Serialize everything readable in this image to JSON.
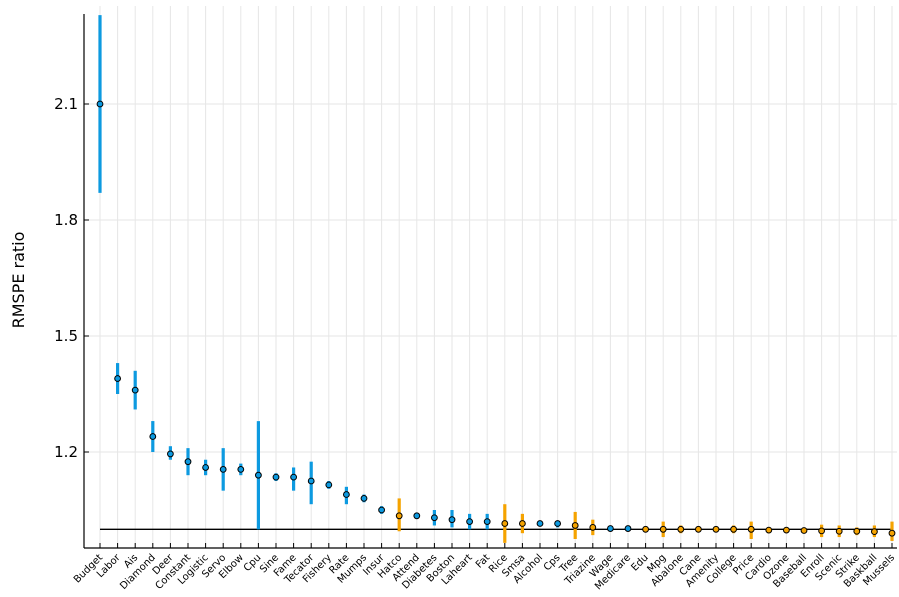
{
  "chart_data": {
    "type": "scatter",
    "title": "",
    "xlabel": "",
    "ylabel": "RMSPE ratio",
    "ylim": [
      0.955,
      2.33
    ],
    "yticks": [
      1.2,
      1.5,
      1.8,
      2.1
    ],
    "reference_line": 1.0,
    "grid": true,
    "colors": {
      "blue": "#0d9ae0",
      "orange": "#f5a300",
      "axis": "#000000",
      "grid": "#e6e6e6"
    },
    "points": [
      {
        "label": "Budget",
        "value": 2.1,
        "low": 1.87,
        "high": 2.33,
        "color": "blue"
      },
      {
        "label": "Labor",
        "value": 1.39,
        "low": 1.35,
        "high": 1.43,
        "color": "blue"
      },
      {
        "label": "Ais",
        "value": 1.36,
        "low": 1.31,
        "high": 1.41,
        "color": "blue"
      },
      {
        "label": "Diamond",
        "value": 1.24,
        "low": 1.2,
        "high": 1.28,
        "color": "blue"
      },
      {
        "label": "Deer",
        "value": 1.195,
        "low": 1.18,
        "high": 1.215,
        "color": "blue"
      },
      {
        "label": "Constant",
        "value": 1.175,
        "low": 1.14,
        "high": 1.21,
        "color": "blue"
      },
      {
        "label": "Logistic",
        "value": 1.16,
        "low": 1.14,
        "high": 1.18,
        "color": "blue"
      },
      {
        "label": "Servo",
        "value": 1.155,
        "low": 1.1,
        "high": 1.21,
        "color": "blue"
      },
      {
        "label": "Elbow",
        "value": 1.155,
        "low": 1.14,
        "high": 1.17,
        "color": "blue"
      },
      {
        "label": "Cpu",
        "value": 1.14,
        "low": 1.0,
        "high": 1.28,
        "color": "blue"
      },
      {
        "label": "Sine",
        "value": 1.135,
        "low": 1.125,
        "high": 1.145,
        "color": "blue"
      },
      {
        "label": "Fame",
        "value": 1.135,
        "low": 1.1,
        "high": 1.16,
        "color": "blue"
      },
      {
        "label": "Tecator",
        "value": 1.125,
        "low": 1.065,
        "high": 1.175,
        "color": "blue"
      },
      {
        "label": "Fishery",
        "value": 1.115,
        "low": 1.105,
        "high": 1.125,
        "color": "blue"
      },
      {
        "label": "Rate",
        "value": 1.09,
        "low": 1.065,
        "high": 1.11,
        "color": "blue"
      },
      {
        "label": "Mumps",
        "value": 1.08,
        "low": 1.07,
        "high": 1.09,
        "color": "blue"
      },
      {
        "label": "Insur",
        "value": 1.05,
        "low": 1.04,
        "high": 1.06,
        "color": "blue"
      },
      {
        "label": "Hatco",
        "value": 1.035,
        "low": 0.995,
        "high": 1.08,
        "color": "orange"
      },
      {
        "label": "Attend",
        "value": 1.035,
        "low": 1.03,
        "high": 1.04,
        "color": "blue"
      },
      {
        "label": "Diabetes",
        "value": 1.03,
        "low": 1.01,
        "high": 1.05,
        "color": "blue"
      },
      {
        "label": "Boston",
        "value": 1.025,
        "low": 1.005,
        "high": 1.05,
        "color": "blue"
      },
      {
        "label": "Laheart",
        "value": 1.02,
        "low": 1.0,
        "high": 1.04,
        "color": "blue"
      },
      {
        "label": "Fat",
        "value": 1.02,
        "low": 1.0,
        "high": 1.04,
        "color": "blue"
      },
      {
        "label": "Rice",
        "value": 1.015,
        "low": 0.965,
        "high": 1.065,
        "color": "orange"
      },
      {
        "label": "Smsa",
        "value": 1.015,
        "low": 0.99,
        "high": 1.04,
        "color": "orange"
      },
      {
        "label": "Alcohol",
        "value": 1.015,
        "low": 1.01,
        "high": 1.02,
        "color": "blue"
      },
      {
        "label": "Cps",
        "value": 1.015,
        "low": 1.005,
        "high": 1.02,
        "color": "blue"
      },
      {
        "label": "Tree",
        "value": 1.01,
        "low": 0.975,
        "high": 1.045,
        "color": "orange"
      },
      {
        "label": "Triazine",
        "value": 1.005,
        "low": 0.985,
        "high": 1.025,
        "color": "orange"
      },
      {
        "label": "Wage",
        "value": 1.002,
        "low": 0.998,
        "high": 1.006,
        "color": "blue"
      },
      {
        "label": "Medicare",
        "value": 1.002,
        "low": 0.998,
        "high": 1.006,
        "color": "blue"
      },
      {
        "label": "Edu",
        "value": 1.0,
        "low": 0.995,
        "high": 1.005,
        "color": "orange"
      },
      {
        "label": "Mpg",
        "value": 1.0,
        "low": 0.98,
        "high": 1.02,
        "color": "orange"
      },
      {
        "label": "Abalone",
        "value": 1.0,
        "low": 0.99,
        "high": 1.01,
        "color": "orange"
      },
      {
        "label": "Cane",
        "value": 1.0,
        "low": 0.995,
        "high": 1.005,
        "color": "orange"
      },
      {
        "label": "Amenity",
        "value": 1.0,
        "low": 0.995,
        "high": 1.005,
        "color": "orange"
      },
      {
        "label": "College",
        "value": 1.0,
        "low": 0.99,
        "high": 1.01,
        "color": "orange"
      },
      {
        "label": "Price",
        "value": 1.0,
        "low": 0.975,
        "high": 1.02,
        "color": "orange"
      },
      {
        "label": "Cardio",
        "value": 0.998,
        "low": 0.99,
        "high": 1.006,
        "color": "orange"
      },
      {
        "label": "Ozone",
        "value": 0.998,
        "low": 0.993,
        "high": 1.003,
        "color": "orange"
      },
      {
        "label": "Baseball",
        "value": 0.997,
        "low": 0.99,
        "high": 1.004,
        "color": "orange"
      },
      {
        "label": "Enroll",
        "value": 0.996,
        "low": 0.98,
        "high": 1.012,
        "color": "orange"
      },
      {
        "label": "Scenic",
        "value": 0.995,
        "low": 0.98,
        "high": 1.01,
        "color": "orange"
      },
      {
        "label": "Strike",
        "value": 0.995,
        "low": 0.985,
        "high": 1.005,
        "color": "orange"
      },
      {
        "label": "Baskball",
        "value": 0.994,
        "low": 0.98,
        "high": 1.01,
        "color": "orange"
      },
      {
        "label": "Mussels",
        "value": 0.99,
        "low": 0.97,
        "high": 1.02,
        "color": "orange"
      }
    ]
  }
}
